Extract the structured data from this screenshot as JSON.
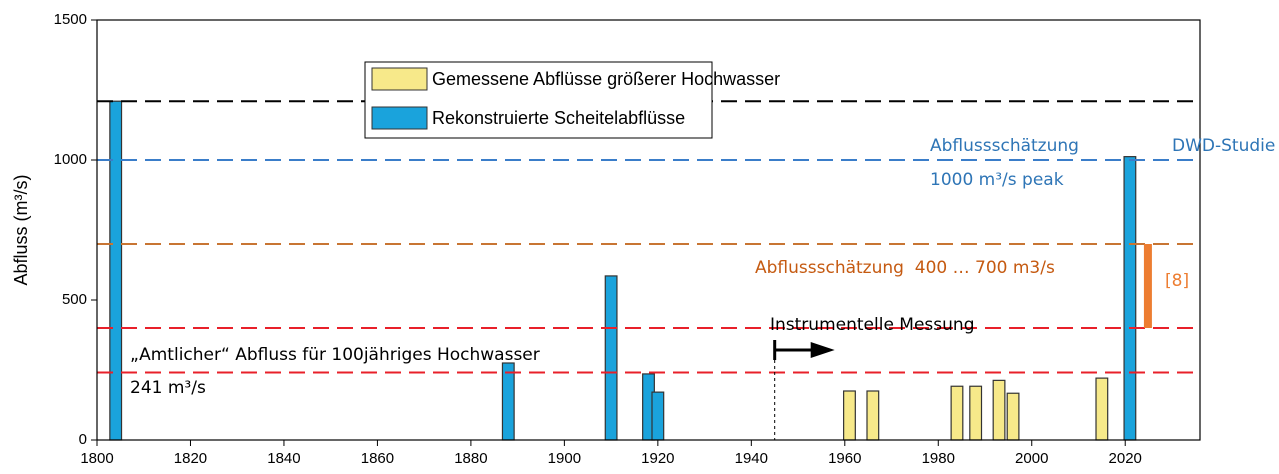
{
  "chart_data": {
    "type": "bar",
    "y_label": "Abfluss (m³/s)",
    "xlim": [
      1800,
      2036
    ],
    "ylim": [
      0,
      1500
    ],
    "xticks": [
      1800,
      1820,
      1840,
      1860,
      1880,
      1900,
      1920,
      1940,
      1960,
      1980,
      2000,
      2020
    ],
    "yticks": [
      0,
      500,
      1000,
      1500
    ],
    "bar_width_years": 2.5,
    "series": [
      {
        "name": "Gemessene Abflüsse größerer Hochwasser",
        "color": "#f7e98a",
        "x": [
          1961,
          1966,
          1984,
          1988,
          1993,
          1996,
          2015
        ],
        "values": [
          175,
          175,
          192,
          192,
          213,
          167,
          221
        ]
      },
      {
        "name": "Rekonstruierte Scheitelabflüsse",
        "color": "#1aa3dc",
        "x": [
          1804,
          1888,
          1910,
          1918,
          1920,
          2021
        ],
        "values": [
          1210,
          275,
          586,
          236,
          171,
          1012
        ]
      }
    ],
    "reference_lines": [
      {
        "value": 1210,
        "color": "#000000"
      },
      {
        "value": 1000,
        "color": "#3a7dc9"
      },
      {
        "value": 700,
        "color": "#c87533"
      },
      {
        "value": 400,
        "color": "#e8202a"
      },
      {
        "value": 241,
        "color": "#e8202a"
      }
    ],
    "measurement_start": 1945,
    "range_bar": {
      "x": 2024,
      "low": 400,
      "high": 700,
      "color": "#ed7d31",
      "label": "[8]"
    },
    "annotations": [
      {
        "text": "Abflussschätzung",
        "color": "#2e75b6"
      },
      {
        "text": "1000 m³/s peak",
        "color": "#2e75b6"
      },
      {
        "text": "DWD-Studie",
        "color": "#2e75b6"
      },
      {
        "text": "Abflussschätzung  400 … 700 m3/s",
        "color": "#c55a11"
      },
      {
        "text": "Instrumentelle Messung",
        "color": "#000000"
      },
      {
        "text": "„Amtlicher“ Abfluss für 100jähriges Hochwasser",
        "color": "#000000"
      },
      {
        "text": "241 m³/s",
        "color": "#000000"
      }
    ]
  }
}
